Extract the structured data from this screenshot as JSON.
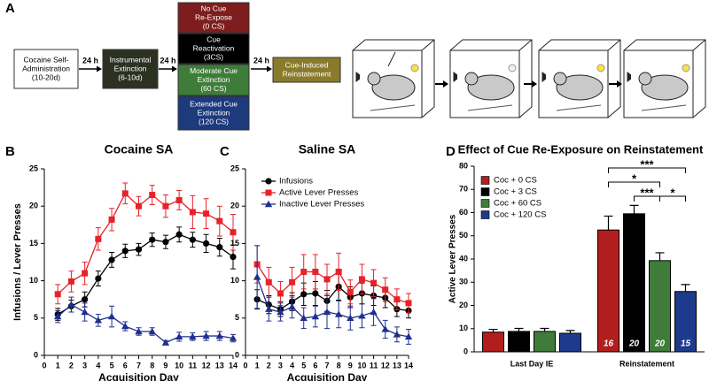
{
  "panel_a": {
    "label": "A",
    "boxes": [
      {
        "lines": [
          "Cocaine Self-",
          "Administration",
          "(10-20d)"
        ],
        "color": "#ffffff",
        "text_color": "#000000"
      },
      {
        "lines": [
          "Instrumental",
          "Extinction",
          "(6-10d)"
        ],
        "color": "#2c3122",
        "text_color": "#ffffff"
      }
    ],
    "arrow_labels": [
      "24 h",
      "24 h",
      "24 h"
    ],
    "groups": [
      {
        "lines": [
          "No Cue",
          "Re-Expose",
          "(0 CS)"
        ],
        "color": "#7d1d1d"
      },
      {
        "lines": [
          "Cue",
          "Reactivation",
          "(3CS)"
        ],
        "color": "#000000"
      },
      {
        "lines": [
          "Moderate Cue",
          "Extinction",
          "(60 CS)"
        ],
        "color": "#3f7c3a"
      },
      {
        "lines": [
          "Extended Cue",
          "Extinction",
          "(120 CS)"
        ],
        "color": "#1d3a7c"
      }
    ],
    "final": {
      "lines": [
        "Cue-Induced",
        "Reinstatement"
      ],
      "color": "#8a7b2b"
    }
  },
  "chart_data": [
    {
      "type": "line",
      "panel": "B",
      "title": "Cocaine SA",
      "xlabel": "Acquisition  Day",
      "ylabel": "Infusions / Lever  Presses",
      "x": [
        1,
        2,
        3,
        4,
        5,
        6,
        7,
        8,
        9,
        10,
        11,
        12,
        13,
        14
      ],
      "xlim": [
        0,
        14
      ],
      "xticks": [
        0,
        1,
        2,
        3,
        4,
        5,
        6,
        7,
        8,
        9,
        10,
        11,
        12,
        13,
        14
      ],
      "ylim": [
        0,
        25
      ],
      "yticks": [
        0,
        5,
        10,
        15,
        20,
        25
      ],
      "series": [
        {
          "color": "#000000",
          "marker": "circle",
          "values": [
            5.5,
            6.6,
            7.5,
            10.3,
            12.8,
            14.0,
            14.2,
            15.5,
            15.2,
            16.2,
            15.5,
            15.0,
            14.5,
            13.2
          ],
          "errors": [
            0.8,
            0.8,
            1.0,
            1.0,
            1.0,
            0.9,
            0.8,
            0.9,
            0.9,
            1.0,
            1.0,
            1.2,
            1.2,
            1.6
          ]
        },
        {
          "color": "#e8222a",
          "marker": "square",
          "values": [
            8.2,
            9.9,
            11.0,
            15.6,
            18.2,
            21.7,
            20.0,
            21.5,
            20.0,
            20.8,
            19.2,
            19.0,
            18.0,
            16.5
          ],
          "errors": [
            1.3,
            1.4,
            1.5,
            1.5,
            1.5,
            1.4,
            1.3,
            1.3,
            1.5,
            1.3,
            2.2,
            2.0,
            2.0,
            2.4
          ]
        },
        {
          "color": "#1f2f8f",
          "marker": "triangle",
          "values": [
            5.2,
            6.8,
            5.8,
            4.7,
            5.2,
            3.9,
            3.2,
            3.2,
            1.7,
            2.5,
            2.5,
            2.6,
            2.6,
            2.3
          ],
          "errors": [
            0.8,
            1.0,
            1.2,
            0.8,
            1.4,
            0.6,
            0.5,
            0.5,
            0.3,
            0.6,
            0.5,
            0.6,
            0.6,
            0.5
          ]
        }
      ]
    },
    {
      "type": "line",
      "panel": "C",
      "title": "Saline SA",
      "xlabel": "Acquisition  Day",
      "legend": "top",
      "x": [
        1,
        2,
        3,
        4,
        5,
        6,
        7,
        8,
        9,
        10,
        11,
        12,
        13,
        14
      ],
      "xlim": [
        0,
        14
      ],
      "xticks": [
        0,
        1,
        2,
        3,
        4,
        5,
        6,
        7,
        8,
        9,
        10,
        11,
        12,
        13,
        14
      ],
      "ylim": [
        0,
        25
      ],
      "yticks": [
        0,
        5,
        10,
        15,
        20,
        25
      ],
      "series": [
        {
          "name": "Infusions",
          "color": "#000000",
          "marker": "circle",
          "values": [
            7.5,
            6.8,
            6.2,
            7.2,
            8.2,
            8.3,
            7.3,
            9.2,
            7.8,
            8.3,
            8.0,
            7.7,
            6.2,
            6.0
          ],
          "errors": [
            1.3,
            1.2,
            1.0,
            1.2,
            1.5,
            1.6,
            1.4,
            1.8,
            1.4,
            1.4,
            1.3,
            1.3,
            1.0,
            1.0
          ]
        },
        {
          "name": "Active Lever Presses",
          "color": "#e8222a",
          "marker": "square",
          "values": [
            12.2,
            9.8,
            8.3,
            9.8,
            11.2,
            11.2,
            10.2,
            11.2,
            8.5,
            10.2,
            9.7,
            8.8,
            7.5,
            7.0
          ],
          "errors": [
            2.5,
            2.0,
            1.6,
            2.0,
            2.3,
            2.3,
            2.0,
            2.5,
            1.6,
            2.0,
            1.8,
            1.6,
            1.4,
            1.3
          ]
        },
        {
          "name": "Inactive Lever Presses",
          "color": "#1f2f8f",
          "marker": "triangle",
          "values": [
            10.5,
            6.2,
            5.8,
            6.5,
            5.0,
            5.2,
            5.8,
            5.5,
            5.0,
            5.3,
            5.8,
            3.5,
            2.8,
            2.5
          ],
          "errors": [
            4.2,
            1.6,
            1.2,
            1.5,
            1.4,
            1.4,
            2.2,
            1.8,
            1.6,
            1.6,
            1.8,
            1.2,
            1.0,
            1.0
          ]
        }
      ]
    },
    {
      "type": "bar",
      "panel": "D",
      "title": "Effect of Cue Re-Exposure on Reinstatement",
      "ylabel": "Active  Lever  Presses",
      "legend": "upper left",
      "categories": [
        "Last Day IE",
        "Reinstatement"
      ],
      "ylim": [
        0,
        80
      ],
      "yticks": [
        0,
        10,
        20,
        30,
        40,
        50,
        60,
        70,
        80
      ],
      "series": [
        {
          "name": "Coc + 0 CS",
          "color": "#b01e1e",
          "values": [
            8.5,
            52.5
          ],
          "errors": [
            1.2,
            6.0
          ]
        },
        {
          "name": "Coc + 3 CS",
          "color": "#000000",
          "values": [
            8.8,
            59.5
          ],
          "errors": [
            1.3,
            3.6
          ]
        },
        {
          "name": "Coc + 60 CS",
          "color": "#3f7c3a",
          "values": [
            8.8,
            39.3
          ],
          "errors": [
            1.3,
            3.4
          ]
        },
        {
          "name": "Coc + 120 CS",
          "color": "#1d3a8c",
          "values": [
            8.0,
            26.0
          ],
          "errors": [
            1.2,
            3.0
          ]
        }
      ],
      "sample_sizes": [
        16,
        20,
        20,
        15
      ],
      "comparisons": [
        {
          "label": "***",
          "between": [
            0,
            3
          ]
        },
        {
          "label": "*",
          "between": [
            0,
            2
          ]
        },
        {
          "label": "***",
          "between": [
            1,
            2
          ]
        },
        {
          "label": "*",
          "between": [
            2,
            3
          ]
        }
      ]
    }
  ]
}
